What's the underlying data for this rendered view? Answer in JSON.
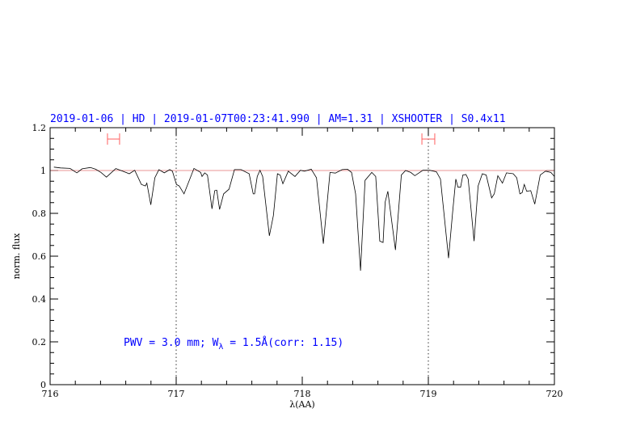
{
  "chart_data": {
    "type": "line",
    "title": "2019-01-06 | HD | 2019-01-07T00:23:41.990 | AM=1.31 | XSHOOTER | S0.4x11",
    "xlabel": "λ(AA)",
    "ylabel": "norm. flux",
    "xlim": [
      716,
      720
    ],
    "ylim": [
      0,
      1.2
    ],
    "x_ticks": [
      "716",
      "717",
      "718",
      "719",
      "720"
    ],
    "y_ticks": [
      "0",
      "0.2",
      "0.4",
      "0.6",
      "0.8",
      "1",
      "1.2"
    ],
    "annotation": {
      "prefix": "PWV = 3.0 mm; W",
      "subscript": "λ",
      "suffix": " = 1.5Å(corr: 1.15)"
    },
    "reference_line": {
      "y": 1.0,
      "color": "#e07070"
    },
    "vertical_markers": [
      717,
      719
    ],
    "error_bars": [
      {
        "y": 1.147,
        "x": [
          716.455,
          716.551
        ]
      },
      {
        "y": 1.147,
        "x": [
          718.949,
          719.051
        ]
      }
    ],
    "colors": {
      "title": "#0000ff",
      "spectrum": "#000000",
      "error_bar": "#ff6060"
    },
    "grid": false,
    "series": [
      {
        "x": [
          716.03,
          716.083,
          716.158,
          716.212,
          716.254,
          716.319,
          716.361,
          716.404,
          716.447,
          716.521,
          716.575,
          716.628,
          716.671,
          716.724,
          716.756,
          716.767,
          716.799,
          716.831,
          716.863,
          716.906,
          716.949,
          716.97,
          717.002,
          717.024,
          717.062,
          717.141,
          717.194,
          717.205,
          717.226,
          717.248,
          717.284,
          717.306,
          717.322,
          717.344,
          717.376,
          717.419,
          717.462,
          717.515,
          717.579,
          717.611,
          717.622,
          717.643,
          717.665,
          717.686,
          717.739,
          717.771,
          717.803,
          717.825,
          717.846,
          717.889,
          717.942,
          717.985,
          718.017,
          718.071,
          718.081,
          718.113,
          718.167,
          718.22,
          718.263,
          718.316,
          718.359,
          718.391,
          718.423,
          718.462,
          718.498,
          718.551,
          718.583,
          718.615,
          718.641,
          718.658,
          718.679,
          718.739,
          718.786,
          718.819,
          718.861,
          718.893,
          718.957,
          719.011,
          719.064,
          719.096,
          719.16,
          719.192,
          719.218,
          719.235,
          719.256,
          719.274,
          719.299,
          719.316,
          719.363,
          719.395,
          719.428,
          719.459,
          719.502,
          719.523,
          719.551,
          719.588,
          719.62,
          719.673,
          719.701,
          719.726,
          719.744,
          719.761,
          719.78,
          719.812,
          719.844,
          719.887,
          719.929,
          719.972,
          720.0
        ],
        "y": [
          1.016,
          1.012,
          1.01,
          0.989,
          1.008,
          1.014,
          1.006,
          0.991,
          0.969,
          1.009,
          0.997,
          0.985,
          1.001,
          0.935,
          0.928,
          0.941,
          0.84,
          0.966,
          1.004,
          0.989,
          1.004,
          0.997,
          0.935,
          0.928,
          0.891,
          1.01,
          0.991,
          0.972,
          0.989,
          0.979,
          0.821,
          0.906,
          0.908,
          0.818,
          0.891,
          0.913,
          1.004,
          1.004,
          0.985,
          0.891,
          0.891,
          0.972,
          1.001,
          0.972,
          0.695,
          0.79,
          0.985,
          0.979,
          0.938,
          0.997,
          0.972,
          1.001,
          0.997,
          1.006,
          0.997,
          0.966,
          0.658,
          0.991,
          0.988,
          1.004,
          1.006,
          0.991,
          0.891,
          0.532,
          0.954,
          0.991,
          0.972,
          0.67,
          0.664,
          0.853,
          0.903,
          0.629,
          0.979,
          1.0,
          0.991,
          0.976,
          1.001,
          1.001,
          0.994,
          0.96,
          0.591,
          0.803,
          0.96,
          0.922,
          0.922,
          0.979,
          0.981,
          0.96,
          0.67,
          0.928,
          0.985,
          0.979,
          0.872,
          0.891,
          0.976,
          0.941,
          0.989,
          0.985,
          0.966,
          0.891,
          0.897,
          0.935,
          0.903,
          0.906,
          0.843,
          0.979,
          0.997,
          0.991,
          0.972
        ]
      }
    ]
  }
}
